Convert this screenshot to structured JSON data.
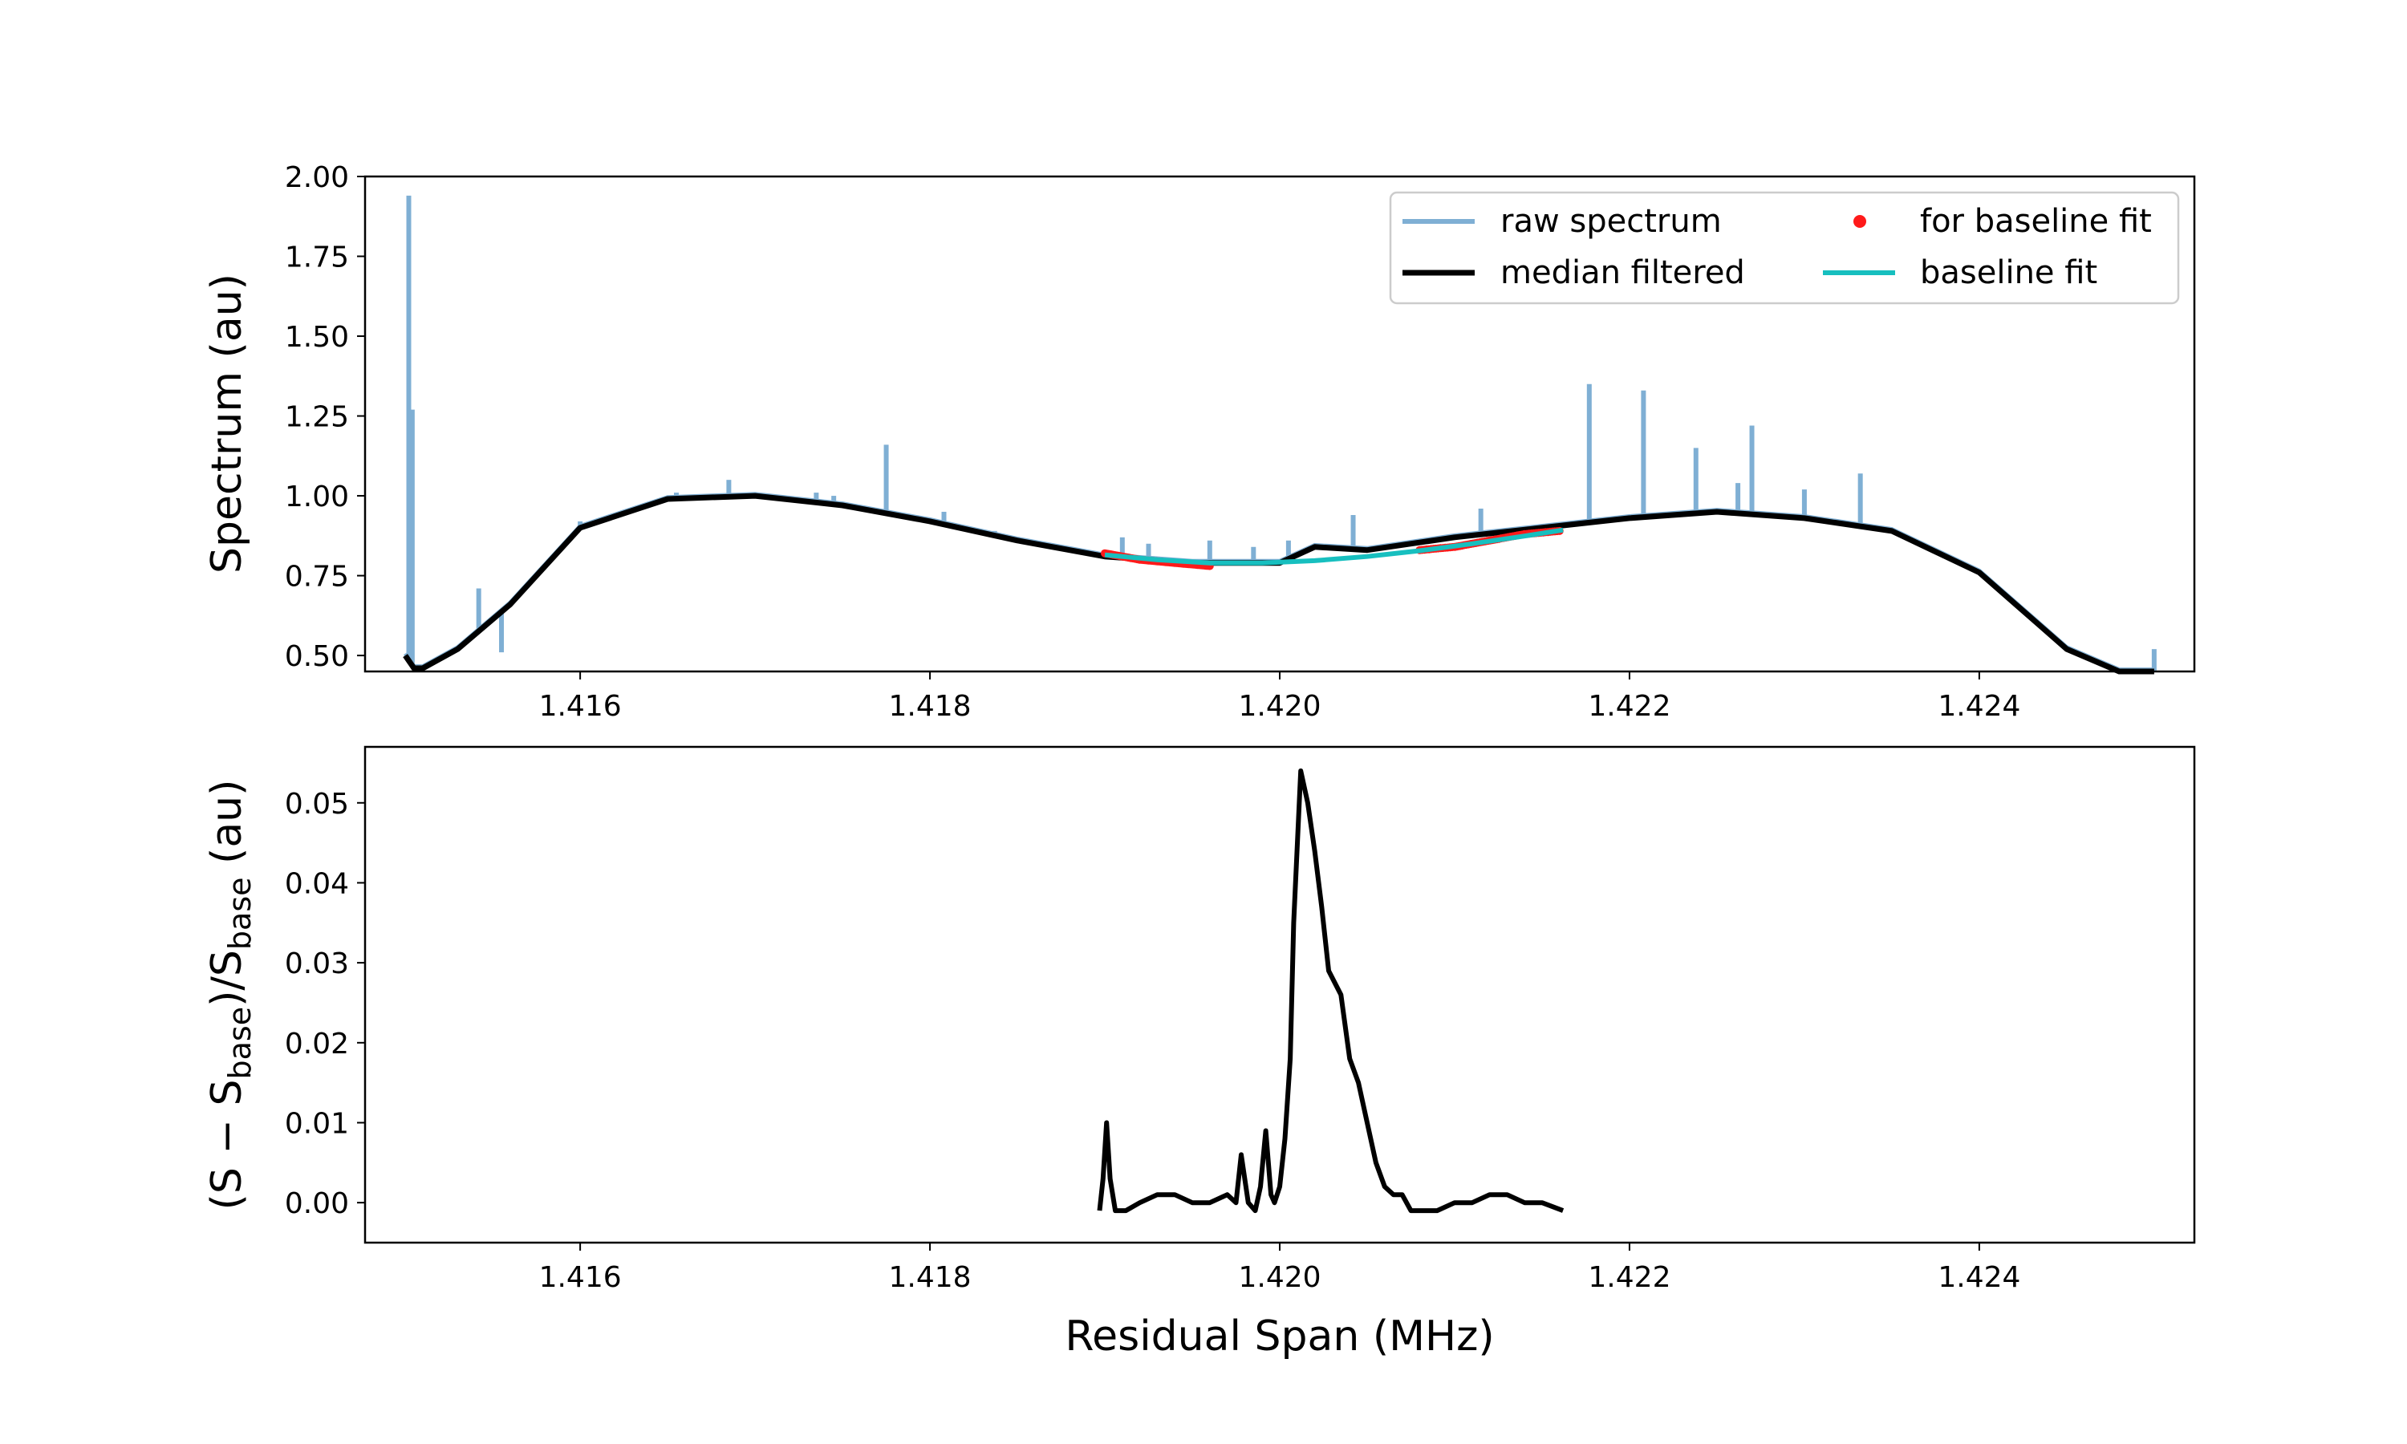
{
  "chart_data": [
    {
      "type": "line",
      "ylabel": "Spectrum (au)",
      "xlabel": "",
      "xlim": [
        1.41477,
        1.42523
      ],
      "ylim": [
        0.45,
        2.0
      ],
      "xticks": [
        "1.416",
        "1.418",
        "1.420",
        "1.422",
        "1.424"
      ],
      "yticks": [
        "0.50",
        "0.75",
        "1.00",
        "1.25",
        "1.50",
        "1.75",
        "2.00"
      ],
      "legend": {
        "placement": "top-right",
        "columns": 2,
        "entries": [
          "raw spectrum",
          "median filtered",
          "for baseline fit",
          "baseline fit"
        ]
      },
      "series": [
        {
          "name": "raw spectrum",
          "color": "#7fafd4",
          "base_follows": "median filtered",
          "spikes": [
            [
              1.41502,
              1.94
            ],
            [
              1.41504,
              1.27
            ],
            [
              1.41555,
              0.51
            ],
            [
              1.41542,
              0.71
            ],
            [
              1.416,
              0.92
            ],
            [
              1.41655,
              1.01
            ],
            [
              1.41685,
              1.05
            ],
            [
              1.41735,
              1.01
            ],
            [
              1.41745,
              1.0
            ],
            [
              1.41775,
              1.16
            ],
            [
              1.41808,
              0.95
            ],
            [
              1.41837,
              0.89
            ],
            [
              1.4191,
              0.87
            ],
            [
              1.41925,
              0.85
            ],
            [
              1.4196,
              0.86
            ],
            [
              1.41985,
              0.84
            ],
            [
              1.42005,
              0.86
            ],
            [
              1.42042,
              0.94
            ],
            [
              1.42115,
              0.96
            ],
            [
              1.42177,
              1.35
            ],
            [
              1.42208,
              1.33
            ],
            [
              1.42238,
              1.15
            ],
            [
              1.42262,
              1.04
            ],
            [
              1.4227,
              1.22
            ],
            [
              1.423,
              1.02
            ],
            [
              1.42332,
              1.07
            ],
            [
              1.425,
              0.52
            ]
          ]
        },
        {
          "name": "median filtered",
          "color": "#000000",
          "x": [
            1.415,
            1.41505,
            1.4151,
            1.4153,
            1.4156,
            1.416,
            1.4165,
            1.417,
            1.4175,
            1.418,
            1.4185,
            1.419,
            1.4195,
            1.42,
            1.4202,
            1.4205,
            1.421,
            1.4215,
            1.422,
            1.4225,
            1.423,
            1.4235,
            1.424,
            1.4245,
            1.4248,
            1.425
          ],
          "y": [
            0.5,
            0.46,
            0.46,
            0.52,
            0.66,
            0.9,
            0.99,
            1.0,
            0.97,
            0.92,
            0.86,
            0.81,
            0.79,
            0.79,
            0.84,
            0.83,
            0.87,
            0.9,
            0.93,
            0.95,
            0.93,
            0.89,
            0.76,
            0.52,
            0.45,
            0.45
          ]
        },
        {
          "name": "for baseline fit",
          "color": "#ff1a1a",
          "segments": [
            {
              "x": [
                1.419,
                1.4192,
                1.4194,
                1.4196
              ],
              "y": [
                0.82,
                0.8,
                0.79,
                0.78
              ]
            },
            {
              "x": [
                1.4208,
                1.421,
                1.4212,
                1.4214,
                1.4216
              ],
              "y": [
                0.83,
                0.84,
                0.86,
                0.88,
                0.89
              ]
            }
          ]
        },
        {
          "name": "baseline fit",
          "color": "#17bfbf",
          "x": [
            1.419,
            1.4193,
            1.4196,
            1.4199,
            1.4202,
            1.4205,
            1.4208,
            1.4211,
            1.4214,
            1.42162
          ],
          "y": [
            0.815,
            0.8,
            0.79,
            0.79,
            0.797,
            0.81,
            0.828,
            0.85,
            0.874,
            0.893
          ]
        }
      ]
    },
    {
      "type": "line",
      "xlabel": "Residual Span (MHz)",
      "ylabel_parts": [
        "(S − S",
        "base",
        ")/S",
        "base",
        " (au)"
      ],
      "xlim": [
        1.41477,
        1.42523
      ],
      "ylim": [
        -0.005,
        0.057
      ],
      "xticks": [
        "1.416",
        "1.418",
        "1.420",
        "1.422",
        "1.424"
      ],
      "yticks": [
        "0.00",
        "0.01",
        "0.02",
        "0.03",
        "0.04",
        "0.05"
      ],
      "series": [
        {
          "color": "#000000",
          "x": [
            1.41897,
            1.41899,
            1.41901,
            1.41903,
            1.41906,
            1.41912,
            1.4192,
            1.4193,
            1.4194,
            1.4195,
            1.4196,
            1.4197,
            1.41975,
            1.41978,
            1.41982,
            1.41986,
            1.41989,
            1.41992,
            1.41995,
            1.41997,
            1.42,
            1.42003,
            1.42006,
            1.42008,
            1.42012,
            1.42016,
            1.4202,
            1.42024,
            1.42028,
            1.42035,
            1.4204,
            1.42045,
            1.4205,
            1.42055,
            1.4206,
            1.42065,
            1.4207,
            1.42075,
            1.4208,
            1.4209,
            1.421,
            1.4211,
            1.4212,
            1.4213,
            1.4214,
            1.4215,
            1.42162
          ],
          "y": [
            -0.001,
            0.003,
            0.01,
            0.003,
            -0.001,
            -0.001,
            0.0,
            0.001,
            0.001,
            0.0,
            0.0,
            0.001,
            0.0,
            0.006,
            0.0,
            -0.001,
            0.002,
            0.009,
            0.001,
            0.0,
            0.002,
            0.008,
            0.018,
            0.035,
            0.054,
            0.05,
            0.044,
            0.037,
            0.029,
            0.026,
            0.018,
            0.015,
            0.01,
            0.005,
            0.002,
            0.001,
            0.001,
            -0.001,
            -0.001,
            -0.001,
            0.0,
            0.0,
            0.001,
            0.001,
            0.0,
            0.0,
            -0.001
          ]
        }
      ]
    }
  ]
}
